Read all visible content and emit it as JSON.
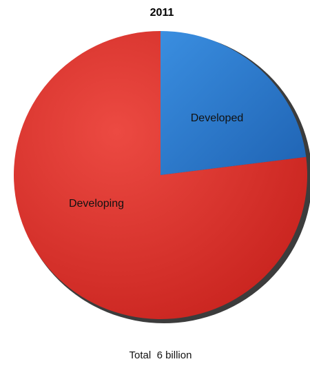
{
  "chart_data": {
    "type": "pie",
    "title": "2011",
    "slices": [
      {
        "label": "Developed",
        "value": 23,
        "color": "#2f7fd0"
      },
      {
        "label": "Developing",
        "value": 77,
        "color": "#e23a33"
      }
    ],
    "total_label": "Total  6 billion"
  }
}
